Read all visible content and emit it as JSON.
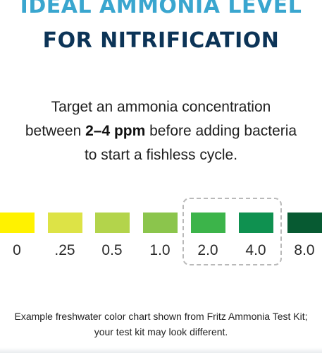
{
  "header": {
    "title_line1": "IDEAL AMMONIA LEVEL",
    "title_line2": "FOR NITRIFICATION"
  },
  "description": {
    "line1": "Target an ammonia concentration",
    "line2_prefix": "between ",
    "line2_bold": "2–4 ppm",
    "line2_suffix": " before adding bacteria",
    "line3": "to start a fishless cycle."
  },
  "color_chart": {
    "swatches": [
      {
        "value": "0",
        "color": "#fff200"
      },
      {
        "value": ".25",
        "color": "#dde346"
      },
      {
        "value": "0.5",
        "color": "#b3d44b"
      },
      {
        "value": "1.0",
        "color": "#8bc54c"
      },
      {
        "value": "2.0",
        "color": "#3cb44a"
      },
      {
        "value": "4.0",
        "color": "#0f9150"
      },
      {
        "value": "8.0",
        "color": "#075a32"
      }
    ],
    "highlighted_values": [
      "2.0",
      "4.0"
    ]
  },
  "footnote": {
    "line1": "Example freshwater color chart shown from Fritz Ammonia Test Kit;",
    "line2": "your test kit may look different."
  }
}
